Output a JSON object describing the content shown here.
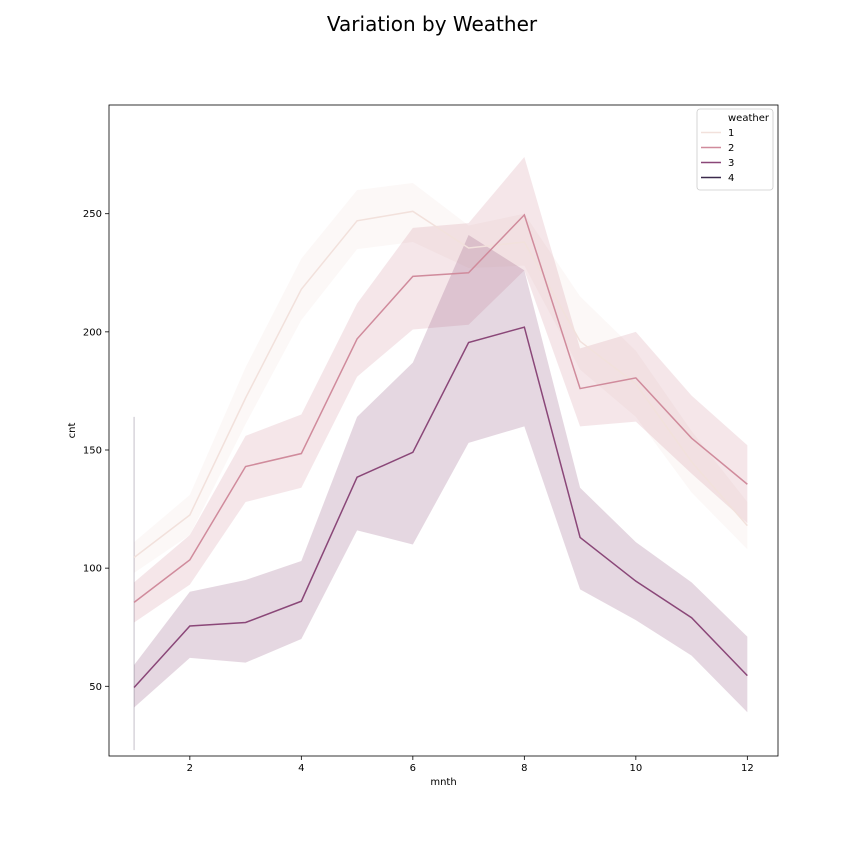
{
  "chart_data": {
    "type": "line",
    "title": "Variation by Weather",
    "xlabel": "mnth",
    "ylabel": "cnt",
    "xlim": [
      0.55,
      12.55
    ],
    "ylim": [
      20.5,
      296
    ],
    "xticks": [
      2,
      4,
      6,
      8,
      10,
      12
    ],
    "yticks": [
      50,
      100,
      150,
      200,
      250
    ],
    "grid": false,
    "legend": {
      "title": "weather",
      "position": "top-right"
    },
    "series": [
      {
        "name": "1",
        "color": "#f2e1dc",
        "x": [
          1,
          2,
          3,
          4,
          5,
          6,
          7,
          8,
          9,
          10,
          11,
          12
        ],
        "values": [
          104.5,
          122.5,
          172,
          218,
          247,
          251,
          235.5,
          238,
          196,
          178,
          145,
          118
        ],
        "ci_low": [
          98,
          114,
          161,
          205,
          235,
          238,
          227,
          228,
          184,
          164,
          132,
          108
        ],
        "ci_high": [
          111,
          131,
          185,
          231,
          260,
          263,
          245,
          250,
          215,
          192,
          158,
          128
        ]
      },
      {
        "name": "2",
        "color": "#d08b9c",
        "x": [
          1,
          2,
          3,
          4,
          5,
          6,
          7,
          8,
          9,
          10,
          11,
          12
        ],
        "values": [
          85.5,
          103.5,
          143,
          148.5,
          197,
          223.5,
          225,
          249.5,
          176,
          180.5,
          155,
          135.5
        ],
        "ci_low": [
          77,
          93,
          128,
          134,
          181,
          201,
          203,
          226,
          160,
          162,
          140,
          119
        ],
        "ci_high": [
          94,
          114,
          156,
          165,
          212,
          244,
          246,
          274,
          193,
          200,
          173,
          152
        ]
      },
      {
        "name": "3",
        "color": "#8a4778",
        "x": [
          1,
          2,
          3,
          4,
          5,
          6,
          7,
          8,
          9,
          10,
          11,
          12
        ],
        "values": [
          49.5,
          75.5,
          77,
          86,
          138.5,
          149,
          195.5,
          202,
          113,
          94.5,
          79,
          54.5
        ],
        "ci_low": [
          41,
          62,
          60,
          70,
          116,
          110,
          153,
          160,
          91,
          78,
          63,
          39
        ],
        "ci_high": [
          59,
          90,
          95,
          103,
          164,
          187,
          241,
          226,
          134,
          111,
          94,
          71
        ]
      },
      {
        "name": "4",
        "color": "#3b2a4c",
        "x": [
          1
        ],
        "values": [
          94
        ],
        "ci_low": [
          23
        ],
        "ci_high": [
          164
        ]
      }
    ]
  }
}
